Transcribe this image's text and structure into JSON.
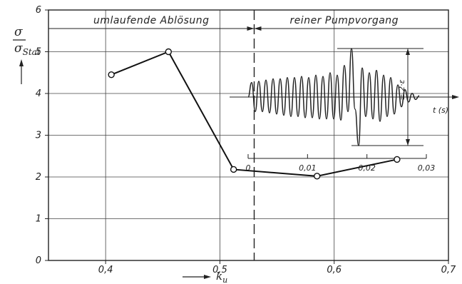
{
  "chart_data": [
    {
      "type": "line",
      "xlabel": "k_u",
      "ylabel": "σ / σ_Stat",
      "xlim": [
        0.35,
        0.7
      ],
      "ylim": [
        0,
        6
      ],
      "x_ticks": [
        "0,4",
        "0,5",
        "0,6",
        "0,7"
      ],
      "x_tick_values": [
        0.4,
        0.5,
        0.6,
        0.7
      ],
      "y_ticks": [
        "0",
        "1",
        "2",
        "3",
        "4",
        "5",
        "6"
      ],
      "y_tick_values": [
        0,
        1,
        2,
        3,
        4,
        5,
        6
      ],
      "grid": true,
      "boundary_x": 0.53,
      "regions": [
        {
          "label": "umlaufende Ablösung"
        },
        {
          "label": "reiner Pumpvorgang"
        }
      ],
      "series": [
        {
          "x": [
            0.405,
            0.455,
            0.512,
            0.585,
            0.655
          ],
          "y": [
            4.45,
            5.0,
            2.18,
            2.02,
            2.42
          ]
        }
      ]
    },
    {
      "type": "line",
      "xlabel": "t (s)",
      "xlim": [
        0,
        0.03
      ],
      "x_ticks": [
        "0",
        "0,01",
        "0,02",
        "0,03"
      ],
      "x_tick_values": [
        0,
        0.01,
        0.02,
        0.03
      ],
      "annotation": "± 2·ε",
      "series": [
        {
          "t": [
            0,
            0.0006,
            0.0012,
            0.0018,
            0.0024,
            0.003,
            0.0036,
            0.0042,
            0.0048,
            0.0054,
            0.006,
            0.0066,
            0.0072,
            0.0078,
            0.0084,
            0.009,
            0.0096,
            0.0102,
            0.0108,
            0.0114,
            0.012,
            0.0126,
            0.0132,
            0.0138,
            0.0144,
            0.015,
            0.0156,
            0.0162,
            0.0168,
            0.0174,
            0.018,
            0.0186,
            0.0192,
            0.0198,
            0.0204,
            0.021,
            0.0216,
            0.0222,
            0.0228,
            0.0234,
            0.024,
            0.0246,
            0.0252,
            0.0258,
            0.0264,
            0.027,
            0.0276,
            0.0282,
            0.0288
          ],
          "y": [
            0.0,
            0.6,
            -0.6,
            0.65,
            -0.6,
            0.7,
            -0.65,
            0.75,
            -0.7,
            0.75,
            -0.75,
            0.8,
            -0.8,
            0.8,
            -0.8,
            0.85,
            -0.85,
            0.8,
            -0.85,
            0.9,
            -0.9,
            0.85,
            -0.9,
            1.0,
            -0.9,
            0.9,
            -0.95,
            1.3,
            -0.6,
            2.0,
            -0.5,
            -2.0,
            1.2,
            -0.8,
            1.0,
            -0.9,
            1.1,
            -1.0,
            0.9,
            -0.8,
            0.8,
            -0.7,
            0.5,
            -0.4,
            0.3,
            -0.2,
            0.15,
            -0.1,
            0.05
          ]
        }
      ]
    }
  ]
}
